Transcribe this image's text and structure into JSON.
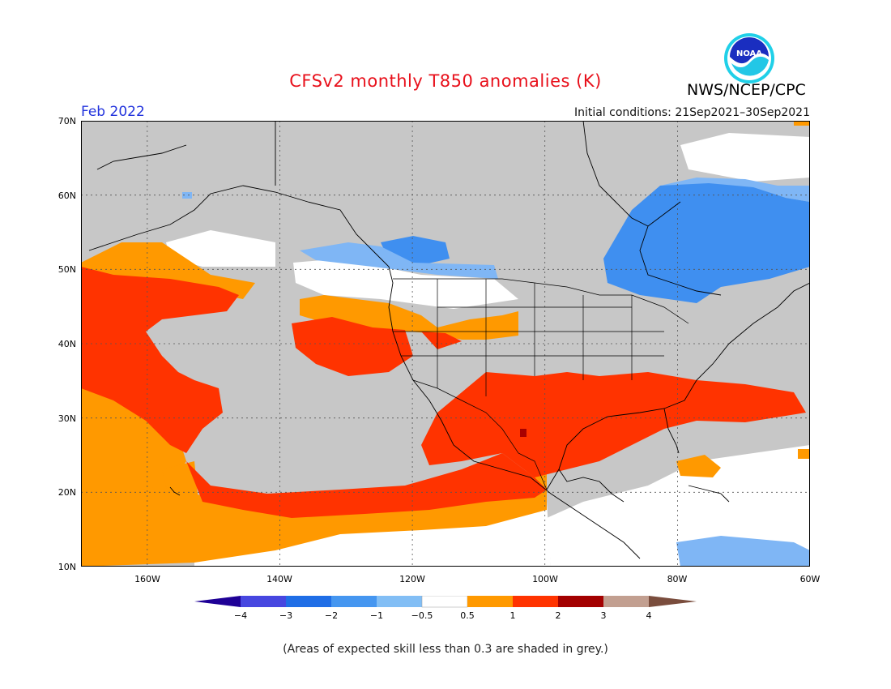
{
  "header": {
    "title": "CFSv2 monthly T850 anomalies (K)",
    "valid_month": "Feb 2022",
    "initial_conditions": "Initial conditions: 21Sep2021–30Sep2021",
    "agency": "NWS/NCEP/CPC",
    "logo_text": "NOAA"
  },
  "map": {
    "lat_labels": [
      "70N",
      "60N",
      "50N",
      "40N",
      "30N",
      "20N",
      "10N"
    ],
    "lon_labels": [
      "160W",
      "140W",
      "120W",
      "100W",
      "80W",
      "60W"
    ],
    "colors": {
      "grey": "#c7c7c7",
      "white": "#ffffff",
      "neg1": "#7fb6f5",
      "neg2": "#3f8ff0",
      "pos1": "#ff9900",
      "pos2": "#ff3300",
      "pos3": "#a80000",
      "border": "#000000"
    }
  },
  "colorbar": {
    "labels": [
      "−4",
      "−3",
      "−2",
      "−1",
      "−0.5",
      "0.5",
      "1",
      "2",
      "3",
      "4"
    ],
    "colors": [
      "#1e0096",
      "#4747e0",
      "#1f6ee6",
      "#4596f0",
      "#82bef5",
      "#ffffff",
      "#ff9900",
      "#ff3300",
      "#a30000",
      "#c29f90",
      "#7a4d3d"
    ]
  },
  "footer": {
    "note": "(Areas of expected skill less than 0.3 are shaded in grey.)"
  }
}
